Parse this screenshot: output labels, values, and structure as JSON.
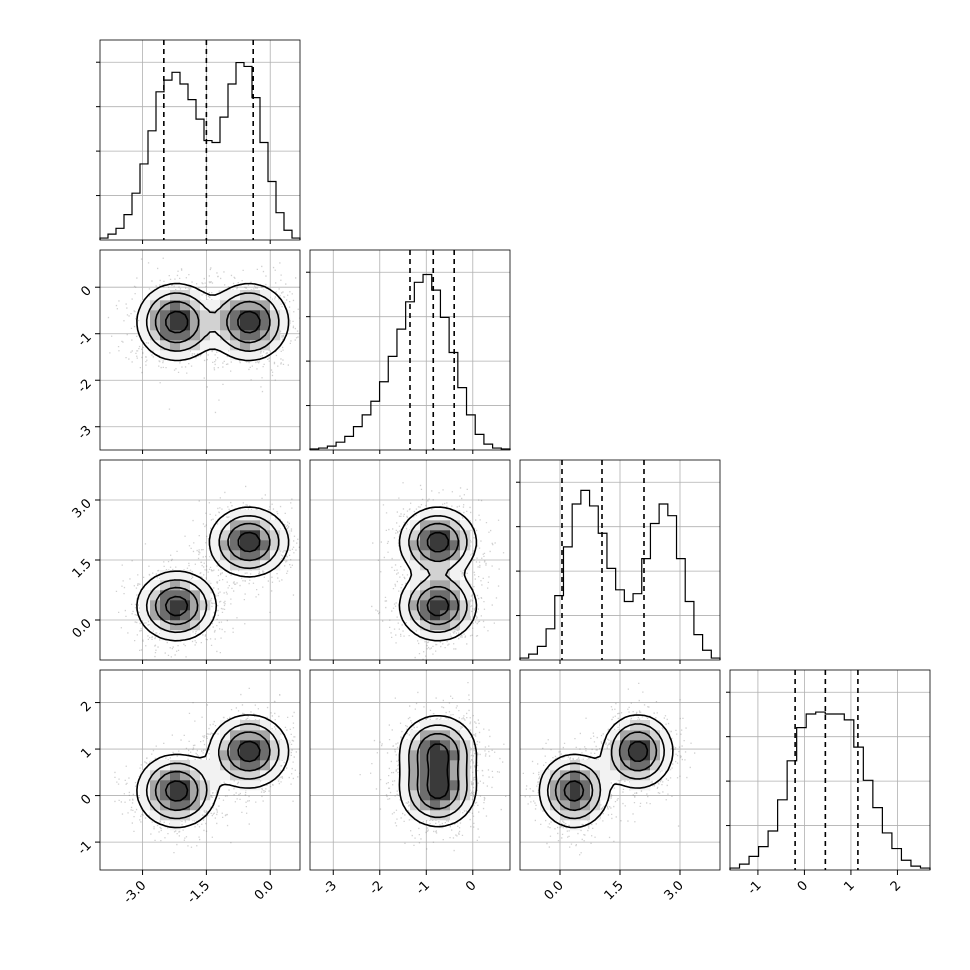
{
  "chart_data": {
    "type": "corner",
    "colors": {
      "hist_line": "#000000",
      "contour": "#000000",
      "points": "#777777",
      "grid": "#b0b0b0",
      "background": "#ffffff"
    },
    "grid": true,
    "variables": [
      {
        "range": [
          -4.0,
          0.7
        ],
        "ticks": [
          "-3.0",
          "-1.5",
          "0.0"
        ],
        "tick_values": [
          -3.0,
          -1.5,
          0.0
        ],
        "quantiles": [
          -2.5,
          -1.5,
          -0.4
        ]
      },
      {
        "range": [
          -3.5,
          0.8
        ],
        "ticks": [
          "-3",
          "-2",
          "-1",
          "0"
        ],
        "tick_values": [
          -3,
          -2,
          -1,
          0
        ],
        "quantiles": [
          -1.35,
          -0.85,
          -0.4
        ]
      },
      {
        "range": [
          -1.0,
          4.0
        ],
        "ticks": [
          "0.0",
          "1.5",
          "3.0"
        ],
        "tick_values": [
          0.0,
          1.5,
          3.0
        ],
        "quantiles": [
          0.05,
          1.05,
          2.1
        ]
      },
      {
        "range": [
          -1.6,
          2.7
        ],
        "ticks": [
          "-1",
          "0",
          "1",
          "2"
        ],
        "tick_values": [
          -1,
          0,
          1,
          2
        ],
        "quantiles": [
          -0.2,
          0.45,
          1.15
        ]
      }
    ],
    "histograms": [
      {
        "counts": [
          0.01,
          0.03,
          0.06,
          0.13,
          0.24,
          0.39,
          0.56,
          0.76,
          0.82,
          0.86,
          0.8,
          0.72,
          0.62,
          0.51,
          0.5,
          0.63,
          0.8,
          0.91,
          0.89,
          0.73,
          0.5,
          0.3,
          0.14,
          0.05,
          0.01
        ],
        "ymax": 1.0
      },
      {
        "counts": [
          0.005,
          0.01,
          0.02,
          0.04,
          0.07,
          0.12,
          0.18,
          0.25,
          0.35,
          0.48,
          0.62,
          0.76,
          0.86,
          0.9,
          0.82,
          0.68,
          0.5,
          0.32,
          0.18,
          0.08,
          0.03,
          0.01,
          0.005
        ],
        "ymax": 1.0
      },
      {
        "counts": [
          0.01,
          0.03,
          0.07,
          0.16,
          0.33,
          0.58,
          0.8,
          0.87,
          0.79,
          0.65,
          0.47,
          0.36,
          0.3,
          0.34,
          0.52,
          0.7,
          0.8,
          0.74,
          0.52,
          0.3,
          0.13,
          0.05,
          0.01
        ],
        "ymax": 1.0
      },
      {
        "counts": [
          0.01,
          0.03,
          0.07,
          0.12,
          0.2,
          0.36,
          0.56,
          0.73,
          0.8,
          0.81,
          0.8,
          0.8,
          0.77,
          0.63,
          0.46,
          0.32,
          0.19,
          0.11,
          0.05,
          0.02,
          0.01
        ],
        "ymax": 1.0
      }
    ],
    "mixture": {
      "weights": [
        0.5,
        0.5
      ],
      "means": [
        [
          -2.2,
          -0.75,
          0.35,
          0.1
        ],
        [
          -0.5,
          -0.75,
          1.95,
          0.95
        ]
      ],
      "sigmas": [
        [
          0.45,
          0.4,
          0.42,
          0.38
        ],
        [
          0.45,
          0.4,
          0.42,
          0.38
        ]
      ],
      "pair_correlations": {
        "1,2": [
          0.0,
          -0.2
        ],
        "3,2": [
          0.0,
          0.0
        ],
        "3,1": [
          0.0,
          0.0
        ]
      }
    }
  }
}
